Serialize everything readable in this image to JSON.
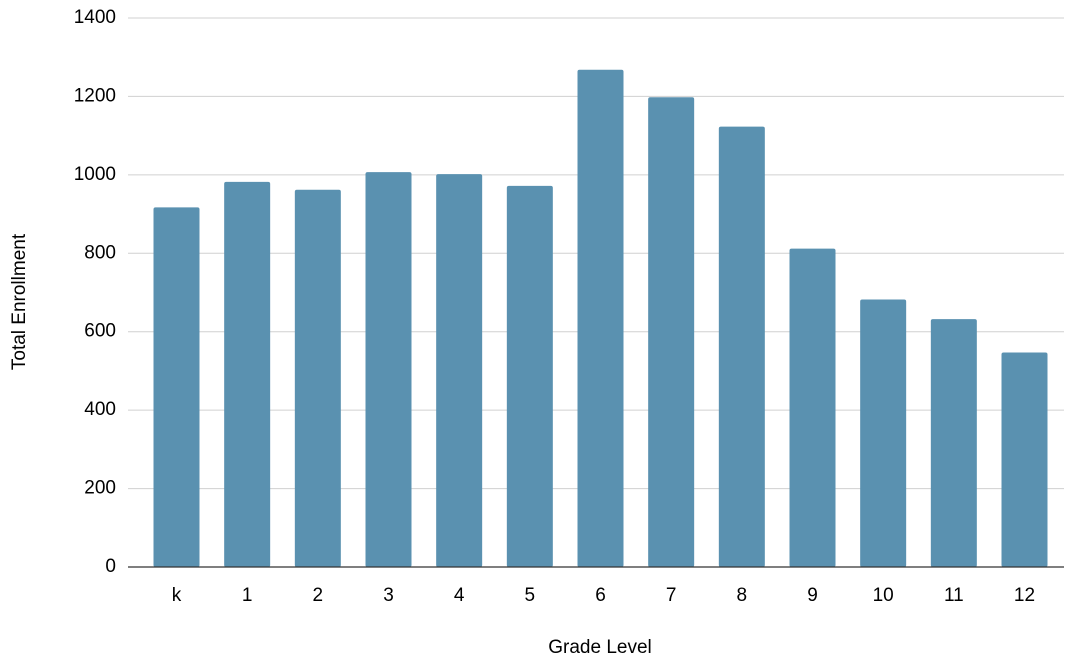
{
  "chart_data": {
    "type": "bar",
    "title": "",
    "xlabel": "Grade Level",
    "ylabel": "Total Enrollment",
    "categories": [
      "k",
      "1",
      "2",
      "3",
      "4",
      "5",
      "6",
      "7",
      "8",
      "9",
      "10",
      "11",
      "12"
    ],
    "values": [
      917,
      982,
      962,
      1007,
      1002,
      972,
      1268,
      1198,
      1123,
      812,
      682,
      632,
      547
    ],
    "ylim": [
      0,
      1400
    ],
    "yticks": [
      0,
      200,
      400,
      600,
      800,
      1000,
      1200,
      1400
    ],
    "grid": true,
    "legend": "none",
    "bar_color": "#5a91b0"
  }
}
